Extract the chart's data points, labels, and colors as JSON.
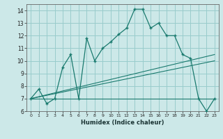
{
  "xlabel": "Humidex (Indice chaleur)",
  "bg_color": "#cce8e8",
  "grid_color": "#99cccc",
  "line_color": "#1a7a6e",
  "xlim": [
    -0.5,
    23.5
  ],
  "ylim": [
    6,
    14.5
  ],
  "x_ticks": [
    0,
    1,
    2,
    3,
    4,
    5,
    6,
    7,
    8,
    9,
    10,
    11,
    12,
    13,
    14,
    15,
    16,
    17,
    18,
    19,
    20,
    21,
    22,
    23
  ],
  "y_ticks": [
    6,
    7,
    8,
    9,
    10,
    11,
    12,
    13,
    14
  ],
  "main_x": [
    0,
    1,
    2,
    3,
    4,
    5,
    6,
    7,
    8,
    9,
    10,
    11,
    12,
    13,
    14,
    15,
    16,
    17,
    18,
    19,
    20,
    21,
    22,
    23
  ],
  "main_y": [
    7.0,
    7.75,
    6.6,
    7.0,
    9.5,
    10.5,
    7.0,
    11.8,
    10.0,
    11.0,
    11.5,
    12.1,
    12.6,
    14.1,
    14.1,
    12.6,
    13.0,
    12.0,
    12.0,
    10.5,
    10.2,
    7.0,
    6.0,
    7.0
  ],
  "line1_x": [
    0,
    23
  ],
  "line1_y": [
    7.0,
    7.0
  ],
  "line2_x": [
    0,
    23
  ],
  "line2_y": [
    7.0,
    10.5
  ],
  "line3_x": [
    0,
    23
  ],
  "line3_y": [
    7.0,
    10.0
  ]
}
